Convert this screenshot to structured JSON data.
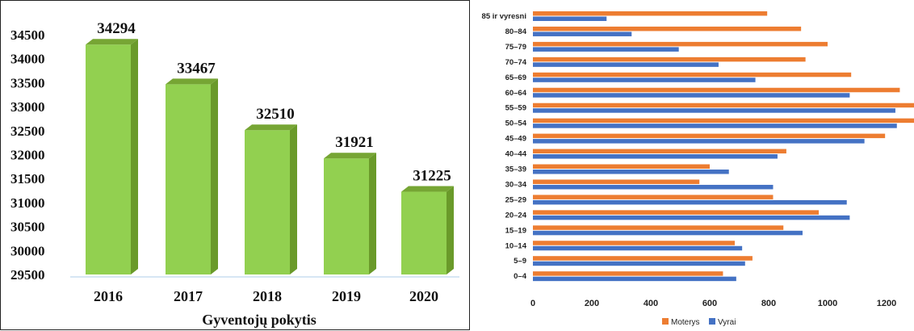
{
  "chart_data": [
    {
      "type": "bar",
      "title": "Gyventojų pokytis",
      "categories": [
        "2016",
        "2017",
        "2018",
        "2019",
        "2020"
      ],
      "values": [
        34294,
        33467,
        32510,
        31921,
        31225
      ],
      "data_labels": [
        "34294",
        "33467",
        "32510",
        "31921",
        "31225"
      ],
      "ylim": [
        29500,
        34500
      ],
      "yticks": [
        29500,
        30000,
        30500,
        31000,
        31500,
        32000,
        32500,
        33000,
        33500,
        34000,
        34500
      ],
      "grid": false,
      "style": "3d",
      "color": "#92d050"
    },
    {
      "type": "bar",
      "orientation": "horizontal",
      "categories": [
        "85 ir vyresni",
        "80–84",
        "75–79",
        "70–74",
        "65–69",
        "60–64",
        "55–59",
        "50–54",
        "45–49",
        "40–44",
        "35–39",
        "30–34",
        "25–29",
        "20–24",
        "15–19",
        "10–14",
        "5–9",
        "0–4"
      ],
      "series": [
        {
          "name": "Moterys",
          "color": "#ed7d31",
          "values": [
            795,
            910,
            1000,
            925,
            1080,
            1245,
            1300,
            1300,
            1195,
            860,
            600,
            565,
            815,
            970,
            850,
            685,
            745,
            645
          ]
        },
        {
          "name": "Vyrai",
          "color": "#4472c4",
          "values": [
            250,
            335,
            495,
            630,
            755,
            1075,
            1230,
            1235,
            1125,
            830,
            665,
            815,
            1065,
            1075,
            915,
            710,
            720,
            690
          ]
        }
      ],
      "xlim": [
        0,
        1300
      ],
      "xticks": [
        0,
        200,
        400,
        600,
        800,
        1000,
        1200
      ],
      "grid": false,
      "legend_position": "bottom"
    }
  ]
}
